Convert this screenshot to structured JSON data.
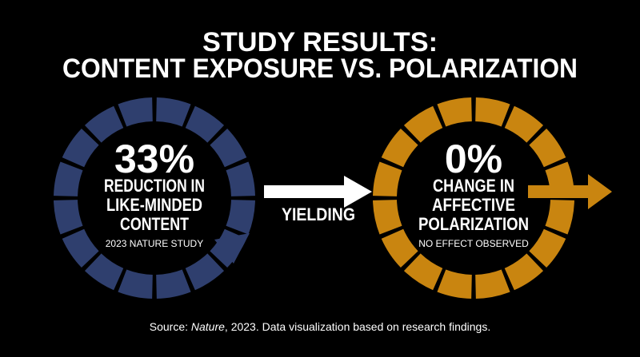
{
  "header": {
    "title_lines": [
      "STUDY RESULTS:",
      "CONTENT EXPOSURE VS. POLARIZATION"
    ]
  },
  "panels": [
    {
      "figure": "33%",
      "label_lines": [
        "REDUCTION IN",
        "LIKE-MINDED",
        "CONTENT"
      ],
      "note": "2023 NATURE STUDY"
    },
    {
      "figure": "0%",
      "label_lines": [
        "CHANGE IN",
        "AFFECTIVE",
        "POLARIZATION"
      ],
      "note": "NO EFFECT OBSERVED"
    }
  ],
  "connector": "YIELDING",
  "source": {
    "prefix": "Source: ",
    "publication": "Nature",
    "suffix": ", 2023. Data visualization based on research findings."
  }
}
